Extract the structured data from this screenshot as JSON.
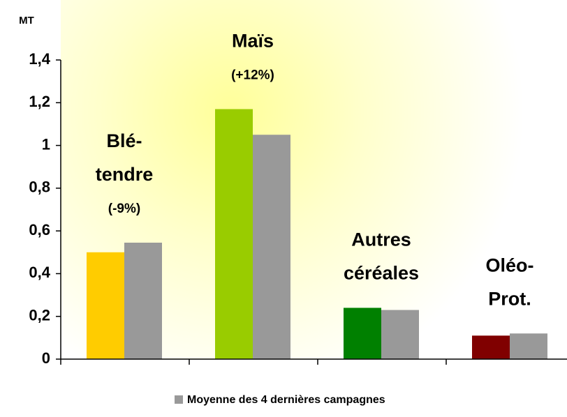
{
  "chart_data": {
    "type": "bar",
    "y_label": "MT",
    "categories": [
      [
        "Blé-",
        "tendre"
      ],
      [
        "Maïs"
      ],
      [
        "Autres",
        "céréales"
      ],
      [
        "Oléo-",
        "Prot."
      ]
    ],
    "change_labels": [
      "(-9%)",
      "(+12%)",
      null,
      null
    ],
    "series": [
      {
        "colors": [
          "#ffcc00",
          "#99cc00",
          "#008000",
          "#800000"
        ],
        "values": [
          0.5,
          1.17,
          0.24,
          0.11
        ]
      },
      {
        "name": "Moyenne des 4 dernières campagnes",
        "color": "#999999",
        "values": [
          0.545,
          1.05,
          0.23,
          0.12
        ]
      }
    ],
    "ylim": [
      0,
      1.4
    ],
    "yticks": [
      0,
      {
        "value": 0.2,
        "label": "0,2"
      },
      {
        "value": 0.4,
        "label": "0,4"
      },
      {
        "value": 0.6,
        "label": "0,6"
      },
      {
        "value": 0.8,
        "label": "0,8"
      },
      1,
      {
        "value": 1.2,
        "label": "1,2"
      },
      {
        "value": 1.4,
        "label": "1,4"
      }
    ],
    "legend": "bottom"
  }
}
